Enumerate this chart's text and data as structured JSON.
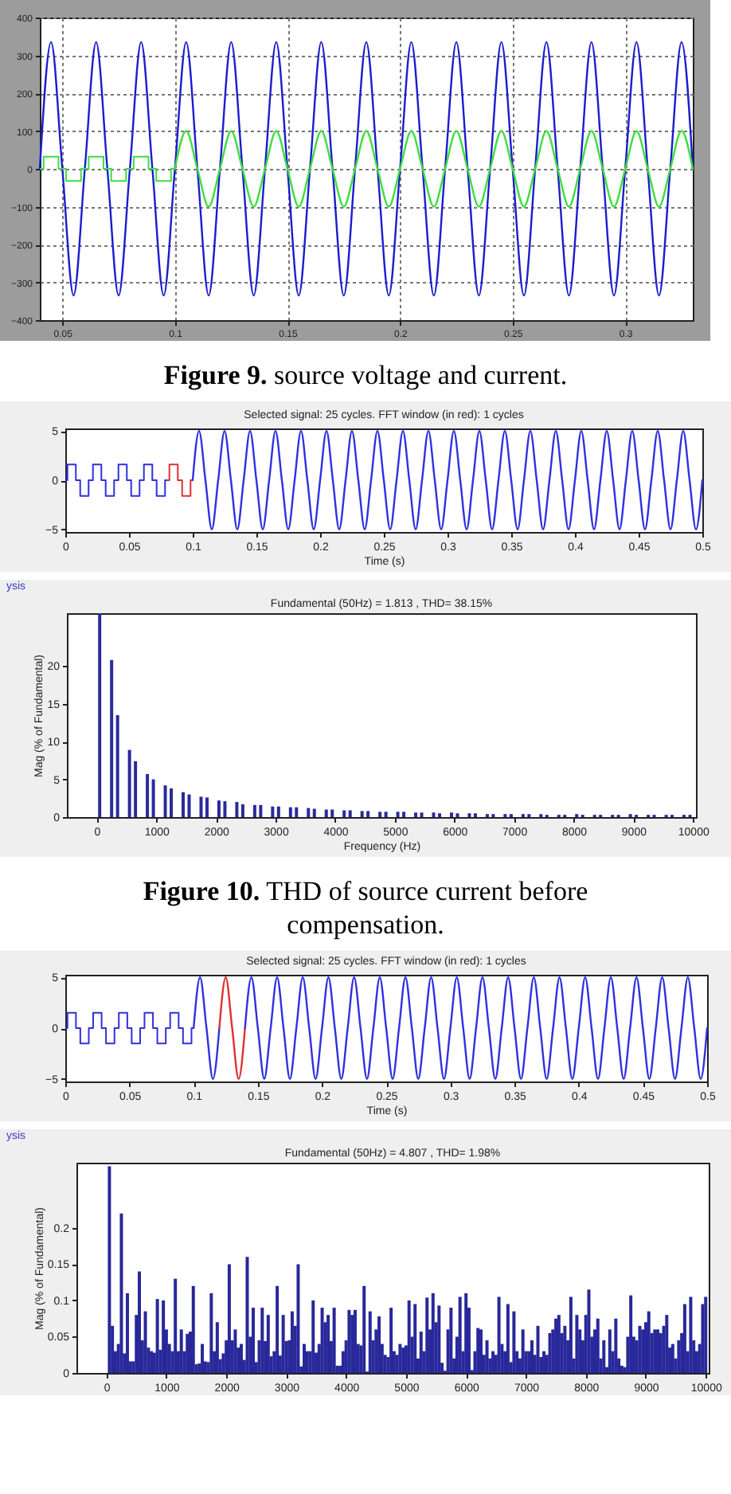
{
  "chart_data": [
    {
      "type": "line",
      "xlim": [
        0.04,
        0.33
      ],
      "ylim": [
        -400,
        400
      ],
      "xticks": [
        0.05,
        0.1,
        0.15,
        0.2,
        0.25,
        0.3
      ],
      "yticks": [
        -400,
        -300,
        -200,
        -100,
        0,
        100,
        200,
        300,
        400
      ],
      "grid": true,
      "annotations": [
        "Figure 9. source voltage and current."
      ],
      "series": [
        {
          "type": "line",
          "color": "#1c1cd0",
          "x": [
            0.04,
            0.045,
            0.05,
            0.055,
            0.06,
            0.065,
            0.07,
            0.075,
            0.08,
            0.085,
            0.09,
            0.095,
            0.1,
            0.105,
            0.11,
            0.115,
            0.12,
            0.125,
            0.13,
            0.135,
            0.14,
            0.145,
            0.15,
            0.155,
            0.16,
            0.165,
            0.17,
            0.175,
            0.18,
            0.185,
            0.19,
            0.195,
            0.2,
            0.205,
            0.21,
            0.215,
            0.22,
            0.225,
            0.23,
            0.235,
            0.24,
            0.245,
            0.25,
            0.255,
            0.26,
            0.265,
            0.27,
            0.275,
            0.28,
            0.285,
            0.29,
            0.295,
            0.3,
            0.305,
            0.31,
            0.315,
            0.32,
            0.325,
            0.33
          ],
          "values": [
            0,
            335,
            0,
            -335,
            0,
            335,
            0,
            -335,
            0,
            335,
            0,
            -335,
            0,
            335,
            0,
            -335,
            0,
            335,
            0,
            -335,
            0,
            335,
            0,
            -335,
            0,
            335,
            0,
            -335,
            0,
            335,
            0,
            -335,
            0,
            335,
            0,
            -335,
            0,
            335,
            0,
            -335,
            0,
            335,
            0,
            -335,
            0,
            335,
            0,
            -335,
            0,
            335,
            0,
            -335,
            0,
            335,
            0,
            -335,
            0,
            335,
            0
          ]
        },
        {
          "type": "step",
          "color": "#3ede3e",
          "x": [
            0.04,
            0.0417,
            0.0483,
            0.0517,
            0.0583,
            0.0617,
            0.0683,
            0.0717,
            0.0783,
            0.0817,
            0.0883,
            0.0917,
            0.0983,
            0.1
          ],
          "values": [
            0,
            32,
            0,
            -32,
            0,
            32,
            0,
            -32,
            0,
            32,
            0,
            -32,
            0,
            0
          ]
        },
        {
          "type": "line",
          "color": "#3ede3e",
          "x": [
            0.1,
            0.105,
            0.11,
            0.115,
            0.12,
            0.125,
            0.13,
            0.135,
            0.14,
            0.145,
            0.15,
            0.155,
            0.16,
            0.165,
            0.17,
            0.175,
            0.18,
            0.185,
            0.19,
            0.195,
            0.2,
            0.205,
            0.21,
            0.215,
            0.22,
            0.225,
            0.23,
            0.235,
            0.24,
            0.245,
            0.25,
            0.255,
            0.26,
            0.265,
            0.27,
            0.275,
            0.28,
            0.285,
            0.29,
            0.295,
            0.3,
            0.305,
            0.31,
            0.315,
            0.32,
            0.325,
            0.33
          ],
          "values": [
            0,
            100,
            0,
            -100,
            0,
            100,
            0,
            -100,
            0,
            100,
            0,
            -100,
            0,
            100,
            0,
            -100,
            0,
            100,
            0,
            -100,
            0,
            100,
            0,
            -100,
            0,
            100,
            0,
            -100,
            0,
            100,
            0,
            -100,
            0,
            100,
            0,
            -100,
            0,
            100,
            0,
            -100,
            0,
            100,
            0,
            -100,
            0,
            100,
            0
          ]
        }
      ]
    },
    {
      "type": "line",
      "title": "Selected signal: 25 cycles. FFT window (in red): 1 cycles",
      "xlabel": "Time (s)",
      "xlim": [
        0,
        0.5
      ],
      "ylim": [
        -5.25,
        5.25
      ],
      "xticks": [
        0,
        0.05,
        0.1,
        0.15,
        0.2,
        0.25,
        0.3,
        0.35,
        0.4,
        0.45,
        0.5
      ],
      "yticks": [
        -5,
        0,
        5
      ],
      "series": [
        {
          "type": "step",
          "color": "#3030e0",
          "x": [
            0,
            0.0017,
            0.0083,
            0.0117,
            0.0183,
            0.0217,
            0.0283,
            0.0317,
            0.0383,
            0.0417,
            0.0483,
            0.0517,
            0.0583,
            0.0617,
            0.0683,
            0.0717,
            0.0783,
            0.08
          ],
          "values": [
            0,
            1.6,
            0,
            -1.6,
            0,
            1.6,
            0,
            -1.6,
            0,
            1.6,
            0,
            -1.6,
            0,
            1.6,
            0,
            -1.6,
            0,
            0
          ]
        },
        {
          "type": "step",
          "color": "#e03030",
          "x": [
            0.08,
            0.0817,
            0.0883,
            0.0917,
            0.0983,
            0.1
          ],
          "values": [
            0,
            1.6,
            0,
            -1.6,
            0,
            0
          ]
        },
        {
          "type": "line",
          "color": "#3030e0",
          "x": [
            0.1,
            0.105,
            0.11,
            0.115,
            0.12,
            0.125,
            0.13,
            0.135,
            0.14,
            0.145,
            0.15,
            0.155,
            0.16,
            0.165,
            0.17,
            0.175,
            0.18,
            0.185,
            0.19,
            0.195,
            0.2,
            0.205,
            0.21,
            0.215,
            0.22,
            0.225,
            0.23,
            0.235,
            0.24,
            0.245,
            0.25,
            0.255,
            0.26,
            0.265,
            0.27,
            0.275,
            0.28,
            0.285,
            0.29,
            0.295,
            0.3,
            0.305,
            0.31,
            0.315,
            0.32,
            0.325,
            0.33,
            0.335,
            0.34,
            0.345,
            0.35,
            0.355,
            0.36,
            0.365,
            0.37,
            0.375,
            0.38,
            0.385,
            0.39,
            0.395,
            0.4,
            0.405,
            0.41,
            0.415,
            0.42,
            0.425,
            0.43,
            0.435,
            0.44,
            0.445,
            0.45,
            0.455,
            0.46,
            0.465,
            0.47,
            0.475,
            0.48,
            0.485,
            0.49,
            0.495,
            0.5
          ],
          "values": [
            0,
            5,
            0,
            -5,
            0,
            5,
            0,
            -5,
            0,
            5,
            0,
            -5,
            0,
            5,
            0,
            -5,
            0,
            5,
            0,
            -5,
            0,
            5,
            0,
            -5,
            0,
            5,
            0,
            -5,
            0,
            5,
            0,
            -5,
            0,
            5,
            0,
            -5,
            0,
            5,
            0,
            -5,
            0,
            5,
            0,
            -5,
            0,
            5,
            0,
            -5,
            0,
            5,
            0,
            -5,
            0,
            5,
            0,
            -5,
            0,
            5,
            0,
            -5,
            0,
            5,
            0,
            -5,
            0,
            5,
            0,
            -5,
            0,
            5,
            0,
            -5,
            0,
            5,
            0,
            -5,
            0,
            5,
            0,
            -5,
            0
          ]
        }
      ]
    },
    {
      "type": "bar",
      "title": "Fundamental (50Hz) = 1.813 , THD= 38.15%",
      "xlabel": "Frequency (Hz)",
      "ylabel": "Mag (% of Fundamental)",
      "xlim": [
        -500,
        10050
      ],
      "ylim": [
        0,
        27
      ],
      "xticks": [
        0,
        1000,
        2000,
        3000,
        4000,
        5000,
        6000,
        7000,
        8000,
        9000,
        10000
      ],
      "yticks": [
        0,
        5,
        10,
        15,
        20
      ],
      "color": "#2a2a9c",
      "annotations": [
        "ysis",
        "Figure 10. THD of source current before compensation."
      ],
      "x": [
        50,
        250,
        350,
        550,
        650,
        850,
        950,
        1150,
        1250,
        1450,
        1550,
        1750,
        1850,
        2050,
        2150,
        2350,
        2450,
        2650,
        2750,
        2950,
        3050,
        3250,
        3350,
        3550,
        3650,
        3850,
        3950,
        4150,
        4250,
        4450,
        4550,
        4750,
        4850,
        5050,
        5150,
        5350,
        5450,
        5650,
        5750,
        5950,
        6050,
        6250,
        6350,
        6550,
        6650,
        6850,
        6950,
        7150,
        7250,
        7450,
        7550,
        7750,
        7850,
        8050,
        8150,
        8350,
        8450,
        8650,
        8750,
        8950,
        9050,
        9250,
        9350,
        9550,
        9650,
        9850,
        9950
      ],
      "values": [
        27,
        20.8,
        13.5,
        8.9,
        7.4,
        5.7,
        5.0,
        4.2,
        3.8,
        3.3,
        3.0,
        2.7,
        2.6,
        2.2,
        2.1,
        2.0,
        1.7,
        1.6,
        1.6,
        1.4,
        1.4,
        1.3,
        1.3,
        1.2,
        1.1,
        1.0,
        1.0,
        0.9,
        0.9,
        0.8,
        0.8,
        0.7,
        0.7,
        0.7,
        0.7,
        0.6,
        0.6,
        0.6,
        0.5,
        0.6,
        0.5,
        0.5,
        0.5,
        0.4,
        0.4,
        0.4,
        0.4,
        0.4,
        0.4,
        0.4,
        0.3,
        0.3,
        0.3,
        0.4,
        0.3,
        0.3,
        0.3,
        0.3,
        0.3,
        0.4,
        0.3,
        0.3,
        0.3,
        0.3,
        0.3,
        0.3,
        0.3
      ]
    },
    {
      "type": "line",
      "title": "Selected signal: 25 cycles. FFT window (in red): 1 cycles",
      "xlabel": "Time (s)",
      "xlim": [
        0,
        0.5
      ],
      "ylim": [
        -5.25,
        5.25
      ],
      "xticks": [
        0,
        0.05,
        0.1,
        0.15,
        0.2,
        0.25,
        0.3,
        0.35,
        0.4,
        0.45,
        0.5
      ],
      "yticks": [
        -5,
        0,
        5
      ],
      "series": [
        {
          "type": "step",
          "color": "#3030e0",
          "x": [
            0,
            0.0017,
            0.0083,
            0.0117,
            0.0183,
            0.0217,
            0.0283,
            0.0317,
            0.0383,
            0.0417,
            0.0483,
            0.0517,
            0.0583,
            0.0617,
            0.0683,
            0.0717,
            0.0783,
            0.0817,
            0.0883,
            0.0917,
            0.0983,
            0.1
          ],
          "values": [
            0,
            1.5,
            0,
            -1.5,
            0,
            1.5,
            0,
            -1.5,
            0,
            1.5,
            0,
            -1.5,
            0,
            1.5,
            0,
            -1.5,
            0,
            1.5,
            0,
            -1.5,
            0,
            0
          ]
        },
        {
          "type": "line",
          "color": "#3030e0",
          "x": [
            0.1,
            0.105,
            0.11,
            0.115,
            0.12
          ],
          "values": [
            0,
            5,
            0,
            -5,
            0
          ]
        },
        {
          "type": "line",
          "color": "#e03030",
          "x": [
            0.12,
            0.125,
            0.13,
            0.135,
            0.14
          ],
          "values": [
            0,
            5,
            0,
            -5,
            0
          ]
        },
        {
          "type": "line",
          "color": "#3030e0",
          "x": [
            0.14,
            0.145,
            0.15,
            0.155,
            0.16,
            0.165,
            0.17,
            0.175,
            0.18,
            0.185,
            0.19,
            0.195,
            0.2,
            0.205,
            0.21,
            0.215,
            0.22,
            0.225,
            0.23,
            0.235,
            0.24,
            0.245,
            0.25,
            0.255,
            0.26,
            0.265,
            0.27,
            0.275,
            0.28,
            0.285,
            0.29,
            0.295,
            0.3,
            0.305,
            0.31,
            0.315,
            0.32,
            0.325,
            0.33,
            0.335,
            0.34,
            0.345,
            0.35,
            0.355,
            0.36,
            0.365,
            0.37,
            0.375,
            0.38,
            0.385,
            0.39,
            0.395,
            0.4,
            0.405,
            0.41,
            0.415,
            0.42,
            0.425,
            0.43,
            0.435,
            0.44,
            0.445,
            0.45,
            0.455,
            0.46,
            0.465,
            0.47,
            0.475,
            0.48,
            0.485,
            0.49,
            0.495,
            0.5
          ],
          "values": [
            0,
            5,
            0,
            -5,
            0,
            5,
            0,
            -5,
            0,
            5,
            0,
            -5,
            0,
            5,
            0,
            -5,
            0,
            5,
            0,
            -5,
            0,
            5,
            0,
            -5,
            0,
            5,
            0,
            -5,
            0,
            5,
            0,
            -5,
            0,
            5,
            0,
            -5,
            0,
            5,
            0,
            -5,
            0,
            5,
            0,
            -5,
            0,
            5,
            0,
            -5,
            0,
            5,
            0,
            -5,
            0,
            5,
            0,
            -5,
            0,
            5,
            0,
            -5,
            0,
            5,
            0,
            -5,
            0,
            5,
            0,
            -5,
            0,
            5,
            0,
            -5,
            0
          ]
        }
      ]
    },
    {
      "type": "bar",
      "title": "Fundamental (50Hz) = 4.807 , THD= 1.98%",
      "ylabel": "Mag (% of Fundamental)",
      "xlim": [
        -500,
        10050
      ],
      "ylim": [
        0,
        0.29
      ],
      "xticks": [
        0,
        1000,
        2000,
        3000,
        4000,
        5000,
        6000,
        7000,
        8000,
        9000,
        10000
      ],
      "yticks": [
        0,
        0.05,
        0.1,
        0.15,
        0.2
      ],
      "color": "#28289a",
      "annotations": [
        "ysis"
      ],
      "x": [
        50,
        100,
        150,
        200,
        250,
        300,
        350,
        400,
        450,
        500,
        550,
        600,
        650,
        700,
        750,
        800,
        850,
        900,
        950,
        1000,
        1050,
        1100,
        1150,
        1200,
        1250,
        1300,
        1350,
        1400,
        1450,
        1500,
        1550,
        1600,
        1650,
        1700,
        1750,
        1800,
        1850,
        1900,
        1950,
        2000,
        2050,
        2100,
        2150,
        2200,
        2250,
        2300,
        2350,
        2400,
        2450,
        2500,
        2550,
        2600,
        2650,
        2700,
        2750,
        2800,
        2850,
        2900,
        2950,
        3000,
        3050,
        3100,
        3150,
        3200,
        3250,
        3300,
        3350,
        3400,
        3450,
        3500,
        3550,
        3600,
        3650,
        3700,
        3750,
        3800,
        3850,
        3900,
        3950,
        4000,
        4050,
        4100,
        4150,
        4200,
        4250,
        4300,
        4350,
        4400,
        4450,
        4500,
        4550,
        4600,
        4650,
        4700,
        4750,
        4800,
        4850,
        4900,
        4950,
        5000,
        5050,
        5100,
        5150,
        5200,
        5250,
        5300,
        5350,
        5400,
        5450,
        5500,
        5550,
        5600,
        5650,
        5700,
        5750,
        5800,
        5850,
        5900,
        5950,
        6000,
        6050,
        6100,
        6150,
        6200,
        6250,
        6300,
        6350,
        6400,
        6450,
        6500,
        6550,
        6600,
        6650,
        6700,
        6750,
        6800,
        6850,
        6900,
        6950,
        7000,
        7050,
        7100,
        7150,
        7200,
        7250,
        7300,
        7350,
        7400,
        7450,
        7500,
        7550,
        7600,
        7650,
        7700,
        7750,
        7800,
        7850,
        7900,
        7950,
        8000,
        8050,
        8100,
        8150,
        8200,
        8250,
        8300,
        8350,
        8400,
        8450,
        8500,
        8550,
        8600,
        8650,
        8700,
        8750,
        8800,
        8850,
        8900,
        8950,
        9000,
        9050,
        9100,
        9150,
        9200,
        9250,
        9300,
        9350,
        9400,
        9450,
        9500,
        9550,
        9600,
        9650,
        9700,
        9750,
        9800,
        9850,
        9900,
        9950,
        10000
      ],
      "values": [
        0.285,
        0.065,
        0.03,
        0.04,
        0.22,
        0.027,
        0.11,
        0.016,
        0.016,
        0.08,
        0.14,
        0.045,
        0.085,
        0.035,
        0.03,
        0.028,
        0.102,
        0.032,
        0.1,
        0.06,
        0.04,
        0.03,
        0.13,
        0.03,
        0.06,
        0.03,
        0.054,
        0.057,
        0.12,
        0.012,
        0.013,
        0.04,
        0.016,
        0.015,
        0.11,
        0.03,
        0.07,
        0.019,
        0.027,
        0.045,
        0.15,
        0.045,
        0.06,
        0.035,
        0.04,
        0.018,
        0.16,
        0.05,
        0.09,
        0.015,
        0.045,
        0.09,
        0.044,
        0.08,
        0.023,
        0.03,
        0.12,
        0.024,
        0.08,
        0.044,
        0.045,
        0.085,
        0.065,
        0.15,
        0.009,
        0.04,
        0.03,
        0.03,
        0.1,
        0.028,
        0.04,
        0.09,
        0.07,
        0.08,
        0.044,
        0.09,
        0.01,
        0.01,
        0.03,
        0.045,
        0.087,
        0.08,
        0.087,
        0.04,
        0.038,
        0.12,
        0.002,
        0.085,
        0.045,
        0.06,
        0.078,
        0.04,
        0.025,
        0.022,
        0.09,
        0.03,
        0.025,
        0.04,
        0.035,
        0.038,
        0.1,
        0.05,
        0.095,
        0.02,
        0.057,
        0.03,
        0.104,
        0.06,
        0.11,
        0.07,
        0.093,
        0.014,
        0.003,
        0.06,
        0.09,
        0.02,
        0.05,
        0.105,
        0.03,
        0.11,
        0.09,
        0.004,
        0.03,
        0.062,
        0.06,
        0.025,
        0.045,
        0.02,
        0.03,
        0.025,
        0.105,
        0.04,
        0.03,
        0.095,
        0.015,
        0.085,
        0.03,
        0.02,
        0.06,
        0.03,
        0.03,
        0.045,
        0.025,
        0.065,
        0.022,
        0.03,
        0.025,
        0.055,
        0.06,
        0.075,
        0.08,
        0.055,
        0.065,
        0.045,
        0.105,
        0.02,
        0.08,
        0.06,
        0.045,
        0.08,
        0.115,
        0.05,
        0.06,
        0.075,
        0.02,
        0.045,
        0.008,
        0.06,
        0.03,
        0.075,
        0.02,
        0.01,
        0.008,
        0.05,
        0.107,
        0.05,
        0.045,
        0.065,
        0.06,
        0.07,
        0.085,
        0.055,
        0.06,
        0.06,
        0.055,
        0.065,
        0.08,
        0.035,
        0.04,
        0.02,
        0.045,
        0.055,
        0.095,
        0.03,
        0.105,
        0.045,
        0.03,
        0.04,
        0.095,
        0.105
      ]
    }
  ]
}
